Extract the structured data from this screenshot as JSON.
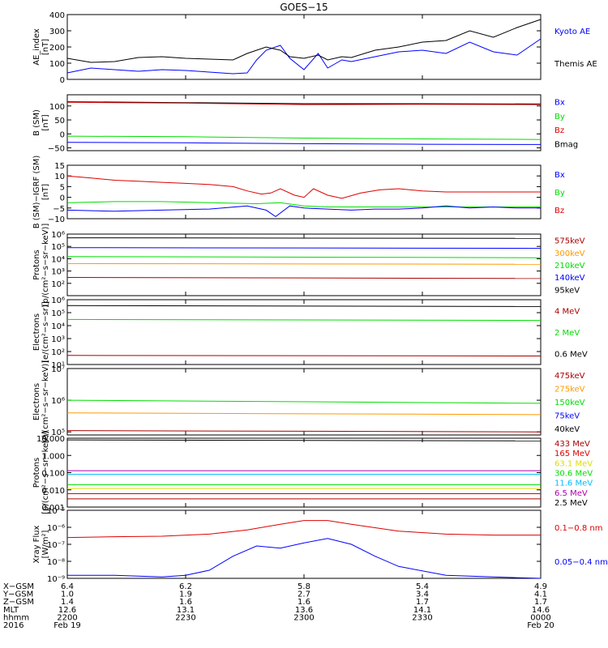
{
  "title": "GOES−15",
  "colors": {
    "black": "#000000",
    "blue": "#0000ff",
    "red": "#dd0000",
    "darkred": "#aa0000",
    "green": "#00dd00",
    "orange": "#ff9900",
    "cyan": "#00bbff",
    "yellow": "#dddd00",
    "purple": "#aa00aa"
  },
  "chart_data": [
    {
      "id": "ae",
      "type": "line",
      "title": "GOES−15",
      "ylabel": "AE_index\n[nT]",
      "yscale": "linear",
      "ylim": [
        0,
        400
      ],
      "yticks": [
        0,
        100,
        200,
        300,
        400
      ],
      "ytick_labels": [
        "0",
        "100",
        "200",
        "300",
        "400"
      ],
      "legend": [
        {
          "label": "Kyoto AE",
          "color": "#0000ff"
        },
        {
          "label": "Themis AE",
          "color": "#000000"
        }
      ],
      "series": [
        {
          "name": "Kyoto AE",
          "color": "#0000ff",
          "x": [
            0,
            5,
            10,
            15,
            20,
            25,
            30,
            35,
            38,
            40,
            42,
            45,
            47,
            50,
            53,
            55,
            58,
            60,
            65,
            70,
            75,
            80,
            85,
            90,
            95,
            100
          ],
          "y": [
            40,
            70,
            60,
            50,
            60,
            55,
            45,
            35,
            40,
            120,
            180,
            210,
            130,
            60,
            160,
            70,
            120,
            110,
            140,
            170,
            180,
            160,
            230,
            170,
            150,
            250
          ]
        },
        {
          "name": "Themis AE",
          "color": "#000000",
          "x": [
            0,
            5,
            10,
            15,
            20,
            25,
            30,
            35,
            38,
            40,
            42,
            45,
            47,
            50,
            53,
            55,
            58,
            60,
            65,
            70,
            75,
            80,
            85,
            90,
            95,
            100
          ],
          "y": [
            130,
            105,
            110,
            135,
            140,
            130,
            125,
            120,
            160,
            180,
            200,
            180,
            140,
            130,
            150,
            120,
            140,
            135,
            180,
            200,
            230,
            240,
            300,
            260,
            320,
            370
          ]
        }
      ]
    },
    {
      "id": "bsm",
      "type": "line",
      "ylabel": "B (SM)\n[nT]",
      "yscale": "linear",
      "ylim": [
        -60,
        140
      ],
      "yticks": [
        -50,
        0,
        50,
        100
      ],
      "ytick_labels": [
        "−50",
        "0",
        "50",
        "100"
      ],
      "legend": [
        {
          "label": "Bx",
          "color": "#0000ff"
        },
        {
          "label": "By",
          "color": "#00dd00"
        },
        {
          "label": "Bz",
          "color": "#dd0000"
        },
        {
          "label": "Bmag",
          "color": "#000000"
        }
      ],
      "series": [
        {
          "name": "Bmag",
          "color": "#000000",
          "x": [
            0,
            25,
            50,
            75,
            100
          ],
          "y": [
            115,
            112,
            108,
            108,
            107
          ]
        },
        {
          "name": "Bz",
          "color": "#dd0000",
          "x": [
            0,
            25,
            50,
            75,
            100
          ],
          "y": [
            113,
            110,
            105,
            106,
            105
          ]
        },
        {
          "name": "By",
          "color": "#00dd00",
          "x": [
            0,
            25,
            50,
            75,
            100
          ],
          "y": [
            -8,
            -10,
            -15,
            -18,
            -20
          ]
        },
        {
          "name": "Bx",
          "color": "#0000ff",
          "x": [
            0,
            25,
            50,
            75,
            100
          ],
          "y": [
            -30,
            -32,
            -35,
            -37,
            -38
          ]
        }
      ]
    },
    {
      "id": "digrf",
      "type": "line",
      "ylabel": "B (SM)−IGRF (SM)\n[nT]",
      "yscale": "linear",
      "ylim": [
        -10,
        15
      ],
      "yticks": [
        -10,
        -5,
        0,
        5,
        10,
        15
      ],
      "ytick_labels": [
        "−10",
        "−5",
        "0",
        "5",
        "10",
        "15"
      ],
      "legend": [
        {
          "label": "Bx",
          "color": "#0000ff"
        },
        {
          "label": "By",
          "color": "#00dd00"
        },
        {
          "label": "Bz",
          "color": "#dd0000"
        }
      ],
      "series": [
        {
          "name": "Bz",
          "color": "#dd0000",
          "x": [
            0,
            5,
            10,
            15,
            20,
            25,
            30,
            35,
            38,
            41,
            43,
            45,
            48,
            50,
            52,
            55,
            58,
            62,
            66,
            70,
            75,
            80,
            85,
            90,
            95,
            100
          ],
          "y": [
            10,
            9,
            8,
            7.5,
            7,
            6.5,
            6,
            5,
            3,
            1.5,
            2,
            4,
            1,
            0,
            4,
            1,
            -0.5,
            2,
            3.5,
            4,
            3,
            2.5,
            2.5,
            2.5,
            2.5,
            2.5
          ]
        },
        {
          "name": "By",
          "color": "#00dd00",
          "x": [
            0,
            10,
            20,
            30,
            40,
            45,
            50,
            55,
            60,
            70,
            80,
            90,
            100
          ],
          "y": [
            -2.5,
            -2,
            -2,
            -2.5,
            -3,
            -2.5,
            -4,
            -4.5,
            -4.5,
            -4.5,
            -4.5,
            -4.5,
            -4.5
          ]
        },
        {
          "name": "Bx",
          "color": "#0000ff",
          "x": [
            0,
            10,
            20,
            30,
            38,
            42,
            44,
            47,
            50,
            55,
            60,
            65,
            70,
            75,
            80,
            85,
            90,
            95,
            100
          ],
          "y": [
            -6,
            -6.5,
            -6,
            -5.5,
            -4,
            -6,
            -9,
            -4,
            -5,
            -5.5,
            -6,
            -5.5,
            -5.5,
            -5,
            -4,
            -5,
            -4.5,
            -5,
            -5
          ]
        }
      ]
    },
    {
      "id": "protons_low",
      "type": "line",
      "ylabel": "Protons\n[p/(cm²−s−sr−keV)]",
      "yscale": "log",
      "ylim": [
        10.0,
        1000000.0
      ],
      "yticks": [
        100.0,
        1000.0,
        10000.0,
        100000.0,
        1000000.0
      ],
      "ytick_labels": [
        "10²",
        "10³",
        "10⁴",
        "10⁵",
        "10⁶"
      ],
      "legend": [
        {
          "label": "575keV",
          "color": "#aa0000"
        },
        {
          "label": "300keV",
          "color": "#ff9900"
        },
        {
          "label": "210keV",
          "color": "#00dd00"
        },
        {
          "label": "140keV",
          "color": "#0000ff"
        },
        {
          "label": "95keV",
          "color": "#000000"
        }
      ],
      "series": [
        {
          "name": "95keV",
          "color": "#000000",
          "x": [
            0,
            100
          ],
          "y": [
            500000,
            450000
          ]
        },
        {
          "name": "140keV",
          "color": "#0000ff",
          "x": [
            0,
            100
          ],
          "y": [
            80000,
            70000
          ]
        },
        {
          "name": "210keV",
          "color": "#00dd00",
          "x": [
            0,
            100
          ],
          "y": [
            15000,
            12000
          ]
        },
        {
          "name": "300keV",
          "color": "#ff9900",
          "x": [
            0,
            100
          ],
          "y": [
            4000,
            3500
          ]
        },
        {
          "name": "575keV",
          "color": "#aa0000",
          "x": [
            0,
            100
          ],
          "y": [
            300,
            250
          ]
        }
      ]
    },
    {
      "id": "electrons_mev",
      "type": "line",
      "ylabel": "Electrons\n[e/(cm²−s−sr)]",
      "yscale": "log",
      "ylim": [
        10.0,
        1000000.0
      ],
      "yticks": [
        10.0,
        100.0,
        1000.0,
        10000.0,
        100000.0,
        1000000.0
      ],
      "ytick_labels": [
        "10¹",
        "10²",
        "10³",
        "10⁴",
        "10⁵",
        "10⁶"
      ],
      "legend": [
        {
          "label": "4 MeV",
          "color": "#aa0000"
        },
        {
          "label": "2 MeV",
          "color": "#00dd00"
        },
        {
          "label": "0.6 MeV",
          "color": "#000000"
        }
      ],
      "series": [
        {
          "name": "0.6 MeV",
          "color": "#000000",
          "x": [
            0,
            100
          ],
          "y": [
            350000,
            300000
          ]
        },
        {
          "name": "2 MeV",
          "color": "#00dd00",
          "x": [
            0,
            100
          ],
          "y": [
            30000,
            25000
          ]
        },
        {
          "name": "4 MeV",
          "color": "#aa0000",
          "x": [
            0,
            100
          ],
          "y": [
            50,
            45
          ]
        }
      ]
    },
    {
      "id": "electrons_kev",
      "type": "line",
      "ylabel": "Electrons\n[e/(cm²−s−sr−keV)]",
      "yscale": "log",
      "ylim": [
        80000.0,
        10000000.0
      ],
      "yticks": [
        100000.0,
        1000000.0,
        10000000.0
      ],
      "ytick_labels": [
        "10⁵",
        "10⁶",
        "10⁷"
      ],
      "legend": [
        {
          "label": "475keV",
          "color": "#aa0000"
        },
        {
          "label": "275keV",
          "color": "#ff9900"
        },
        {
          "label": "150keV",
          "color": "#00dd00"
        },
        {
          "label": "75keV",
          "color": "#0000ff"
        },
        {
          "label": "40keV",
          "color": "#000000"
        }
      ],
      "series": [
        {
          "name": "150keV",
          "color": "#00dd00",
          "x": [
            0,
            100
          ],
          "y": [
            1000000,
            800000
          ]
        },
        {
          "name": "275keV",
          "color": "#ff9900",
          "x": [
            0,
            100
          ],
          "y": [
            400000,
            350000
          ]
        },
        {
          "name": "475keV",
          "color": "#aa0000",
          "x": [
            0,
            100
          ],
          "y": [
            110000,
            100000
          ]
        }
      ]
    },
    {
      "id": "protons_mev",
      "type": "line",
      "ylabel": "Protons\n[p/(cm²−s−sr−keV)]",
      "yscale": "log",
      "ylim": [
        0.001,
        10
      ],
      "yticks": [
        0.001,
        0.01,
        0.1,
        1,
        10
      ],
      "ytick_labels": [
        "0.001",
        "0.010",
        "0.100",
        "1.000",
        "10.000"
      ],
      "legend": [
        {
          "label": "433 MeV",
          "color": "#aa0000"
        },
        {
          "label": "165 MeV",
          "color": "#dd0000"
        },
        {
          "label": "63.1 MeV",
          "color": "#dddd00"
        },
        {
          "label": "30.6 MeV",
          "color": "#00dd00"
        },
        {
          "label": "11.6 MeV",
          "color": "#00bbff"
        },
        {
          "label": "6.5 MeV",
          "color": "#aa00aa"
        },
        {
          "label": "2.5 MeV",
          "color": "#000000"
        }
      ],
      "series": [
        {
          "name": "2.5 MeV",
          "color": "#000000",
          "x": [
            0,
            100
          ],
          "y": [
            8,
            7
          ]
        },
        {
          "name": "6.5 MeV",
          "color": "#aa00aa",
          "x": [
            0,
            100
          ],
          "y": [
            0.13,
            0.13
          ]
        },
        {
          "name": "11.6 MeV",
          "color": "#00bbff",
          "x": [
            0,
            100
          ],
          "y": [
            0.08,
            0.08
          ]
        },
        {
          "name": "30.6 MeV",
          "color": "#00dd00",
          "x": [
            0,
            100
          ],
          "y": [
            0.02,
            0.02
          ]
        },
        {
          "name": "63.1 MeV",
          "color": "#dddd00",
          "x": [
            0,
            100
          ],
          "y": [
            0.012,
            0.012
          ]
        },
        {
          "name": "165 MeV",
          "color": "#dd0000",
          "x": [
            0,
            100
          ],
          "y": [
            0.006,
            0.006
          ]
        },
        {
          "name": "433 MeV",
          "color": "#aa0000",
          "x": [
            0,
            100
          ],
          "y": [
            0.003,
            0.003
          ]
        }
      ]
    },
    {
      "id": "xray",
      "type": "line",
      "ylabel": "Xray Flux\n[W/m²]",
      "yscale": "log",
      "ylim": [
        1e-09,
        1e-05
      ],
      "yticks": [
        1e-09,
        1e-08,
        1e-07,
        1e-06,
        1e-05
      ],
      "ytick_labels": [
        "10⁻⁹",
        "10⁻⁸",
        "10⁻⁷",
        "10⁻⁶",
        "10⁻⁵"
      ],
      "legend": [
        {
          "label": "0.1−0.8 nm",
          "color": "#dd0000"
        },
        {
          "label": "0.05−0.4 nm",
          "color": "#0000ff"
        }
      ],
      "series": [
        {
          "name": "0.1−0.8 nm",
          "color": "#dd0000",
          "x": [
            0,
            10,
            20,
            30,
            38,
            45,
            50,
            55,
            60,
            70,
            80,
            90,
            100
          ],
          "y": [
            2.5e-07,
            2.8e-07,
            3e-07,
            4e-07,
            7e-07,
            1.5e-06,
            2.5e-06,
            2.5e-06,
            1.5e-06,
            6e-07,
            4e-07,
            3.5e-07,
            3.5e-07
          ]
        },
        {
          "name": "0.05−0.4 nm",
          "color": "#0000ff",
          "x": [
            0,
            10,
            20,
            25,
            30,
            35,
            40,
            45,
            50,
            55,
            60,
            65,
            70,
            80,
            90,
            100
          ],
          "y": [
            1.5e-09,
            1.5e-09,
            1.2e-09,
            1.5e-09,
            3e-09,
            2e-08,
            8e-08,
            6e-08,
            1.2e-07,
            2.2e-07,
            1e-07,
            2e-08,
            5e-09,
            1.5e-09,
            1.2e-09,
            1e-09
          ]
        }
      ]
    }
  ],
  "x_axis": {
    "xlim": [
      0,
      100
    ],
    "row_labels": [
      "X−GSM",
      "Y−GSM",
      "Z−GSM",
      "MLT",
      "hhmm",
      "2016"
    ],
    "ticks": [
      {
        "x": 0,
        "values": [
          "6.4",
          "1.0",
          "1.4",
          "12.6",
          "2200",
          "Feb 19"
        ]
      },
      {
        "x": 25,
        "values": [
          "6.2",
          "1.9",
          "1.6",
          "13.1",
          "2230",
          ""
        ]
      },
      {
        "x": 50,
        "values": [
          "5.8",
          "2.7",
          "1.6",
          "13.6",
          "2300",
          ""
        ]
      },
      {
        "x": 75,
        "values": [
          "5.4",
          "3.4",
          "1.7",
          "14.1",
          "2330",
          ""
        ]
      },
      {
        "x": 100,
        "values": [
          "4.9",
          "4.1",
          "1.7",
          "14.6",
          "0000",
          "Feb 20"
        ]
      }
    ]
  }
}
